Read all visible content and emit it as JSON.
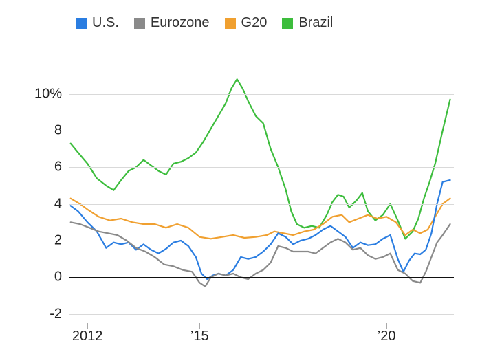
{
  "chart": {
    "type": "line",
    "background_color": "#ffffff",
    "font_family": "sans-serif",
    "legend": {
      "position": "top",
      "fontsize": 20,
      "swatch_size": 16,
      "items": [
        {
          "label": "U.S.",
          "color": "#2a7de1"
        },
        {
          "label": "Eurozone",
          "color": "#8a8a8a"
        },
        {
          "label": "G20",
          "color": "#f0a030"
        },
        {
          "label": "Brazil",
          "color": "#3dbd3d"
        }
      ]
    },
    "x_axis": {
      "lim": [
        2011.5,
        2021.8
      ],
      "ticks": [
        {
          "value": 2012,
          "label": "2012"
        },
        {
          "value": 2015,
          "label": "’15"
        },
        {
          "value": 2020,
          "label": "’20"
        }
      ],
      "tick_fontsize": 20,
      "tick_color": "#222222",
      "tick_mark_color": "#a9a9a9"
    },
    "y_axis": {
      "lim": [
        -2.5,
        11
      ],
      "ticks": [
        {
          "value": -2,
          "label": "-2"
        },
        {
          "value": 0,
          "label": "0"
        },
        {
          "value": 2,
          "label": "2"
        },
        {
          "value": 4,
          "label": "4"
        },
        {
          "value": 6,
          "label": "6"
        },
        {
          "value": 8,
          "label": "8"
        },
        {
          "value": 10,
          "label": "10%"
        }
      ],
      "tick_fontsize": 20,
      "tick_color": "#222222",
      "zero_line_color": "#111111",
      "grid_color": "#d9d9d9",
      "zero_line_width": 1.5,
      "grid_line_width": 1
    },
    "line_width": 2.2,
    "series": [
      {
        "name": "Brazil",
        "color": "#3dbd3d",
        "points": [
          [
            2011.55,
            7.3
          ],
          [
            2011.75,
            6.8
          ],
          [
            2012.0,
            6.2
          ],
          [
            2012.25,
            5.4
          ],
          [
            2012.5,
            5.0
          ],
          [
            2012.7,
            4.75
          ],
          [
            2012.9,
            5.3
          ],
          [
            2013.1,
            5.8
          ],
          [
            2013.3,
            6.0
          ],
          [
            2013.5,
            6.4
          ],
          [
            2013.7,
            6.1
          ],
          [
            2013.9,
            5.8
          ],
          [
            2014.1,
            5.6
          ],
          [
            2014.3,
            6.2
          ],
          [
            2014.5,
            6.3
          ],
          [
            2014.7,
            6.5
          ],
          [
            2014.9,
            6.8
          ],
          [
            2015.1,
            7.4
          ],
          [
            2015.3,
            8.1
          ],
          [
            2015.5,
            8.8
          ],
          [
            2015.7,
            9.5
          ],
          [
            2015.85,
            10.3
          ],
          [
            2016.0,
            10.8
          ],
          [
            2016.15,
            10.3
          ],
          [
            2016.3,
            9.6
          ],
          [
            2016.5,
            8.8
          ],
          [
            2016.7,
            8.4
          ],
          [
            2016.9,
            7.0
          ],
          [
            2017.1,
            6.0
          ],
          [
            2017.3,
            4.8
          ],
          [
            2017.45,
            3.6
          ],
          [
            2017.6,
            2.9
          ],
          [
            2017.8,
            2.7
          ],
          [
            2018.0,
            2.8
          ],
          [
            2018.2,
            2.7
          ],
          [
            2018.4,
            3.4
          ],
          [
            2018.55,
            4.1
          ],
          [
            2018.7,
            4.5
          ],
          [
            2018.85,
            4.4
          ],
          [
            2019.0,
            3.8
          ],
          [
            2019.2,
            4.2
          ],
          [
            2019.35,
            4.6
          ],
          [
            2019.5,
            3.6
          ],
          [
            2019.7,
            3.1
          ],
          [
            2019.9,
            3.4
          ],
          [
            2020.1,
            4.0
          ],
          [
            2020.3,
            3.1
          ],
          [
            2020.5,
            2.1
          ],
          [
            2020.7,
            2.5
          ],
          [
            2020.85,
            3.2
          ],
          [
            2021.0,
            4.3
          ],
          [
            2021.15,
            5.2
          ],
          [
            2021.3,
            6.2
          ],
          [
            2021.5,
            8.0
          ],
          [
            2021.7,
            9.7
          ]
        ]
      },
      {
        "name": "G20",
        "color": "#f0a030",
        "points": [
          [
            2011.55,
            4.3
          ],
          [
            2011.8,
            4.0
          ],
          [
            2012.0,
            3.7
          ],
          [
            2012.3,
            3.3
          ],
          [
            2012.6,
            3.1
          ],
          [
            2012.9,
            3.2
          ],
          [
            2013.2,
            3.0
          ],
          [
            2013.5,
            2.9
          ],
          [
            2013.8,
            2.9
          ],
          [
            2014.1,
            2.7
          ],
          [
            2014.4,
            2.9
          ],
          [
            2014.7,
            2.7
          ],
          [
            2015.0,
            2.2
          ],
          [
            2015.3,
            2.1
          ],
          [
            2015.6,
            2.2
          ],
          [
            2015.9,
            2.3
          ],
          [
            2016.2,
            2.15
          ],
          [
            2016.5,
            2.2
          ],
          [
            2016.8,
            2.3
          ],
          [
            2017.0,
            2.5
          ],
          [
            2017.25,
            2.4
          ],
          [
            2017.5,
            2.3
          ],
          [
            2017.8,
            2.5
          ],
          [
            2018.05,
            2.6
          ],
          [
            2018.3,
            2.9
          ],
          [
            2018.55,
            3.3
          ],
          [
            2018.8,
            3.4
          ],
          [
            2019.0,
            3.0
          ],
          [
            2019.25,
            3.2
          ],
          [
            2019.5,
            3.4
          ],
          [
            2019.75,
            3.2
          ],
          [
            2020.0,
            3.3
          ],
          [
            2020.25,
            3.0
          ],
          [
            2020.5,
            2.3
          ],
          [
            2020.7,
            2.6
          ],
          [
            2020.9,
            2.4
          ],
          [
            2021.1,
            2.6
          ],
          [
            2021.3,
            3.3
          ],
          [
            2021.5,
            4.0
          ],
          [
            2021.7,
            4.3
          ]
        ]
      },
      {
        "name": "U.S.",
        "color": "#2a7de1",
        "points": [
          [
            2011.55,
            3.9
          ],
          [
            2011.75,
            3.6
          ],
          [
            2012.0,
            3.0
          ],
          [
            2012.25,
            2.5
          ],
          [
            2012.5,
            1.6
          ],
          [
            2012.7,
            1.9
          ],
          [
            2012.9,
            1.8
          ],
          [
            2013.1,
            1.9
          ],
          [
            2013.3,
            1.5
          ],
          [
            2013.5,
            1.8
          ],
          [
            2013.7,
            1.5
          ],
          [
            2013.9,
            1.3
          ],
          [
            2014.1,
            1.55
          ],
          [
            2014.3,
            1.9
          ],
          [
            2014.5,
            2.0
          ],
          [
            2014.7,
            1.7
          ],
          [
            2014.9,
            1.1
          ],
          [
            2015.05,
            0.2
          ],
          [
            2015.2,
            -0.1
          ],
          [
            2015.35,
            0.1
          ],
          [
            2015.5,
            0.2
          ],
          [
            2015.7,
            0.1
          ],
          [
            2015.9,
            0.4
          ],
          [
            2016.1,
            1.1
          ],
          [
            2016.3,
            1.0
          ],
          [
            2016.5,
            1.1
          ],
          [
            2016.7,
            1.4
          ],
          [
            2016.9,
            1.8
          ],
          [
            2017.1,
            2.4
          ],
          [
            2017.3,
            2.2
          ],
          [
            2017.5,
            1.8
          ],
          [
            2017.7,
            2.0
          ],
          [
            2017.9,
            2.1
          ],
          [
            2018.1,
            2.3
          ],
          [
            2018.3,
            2.6
          ],
          [
            2018.5,
            2.8
          ],
          [
            2018.7,
            2.5
          ],
          [
            2018.9,
            2.2
          ],
          [
            2019.1,
            1.6
          ],
          [
            2019.3,
            1.9
          ],
          [
            2019.5,
            1.75
          ],
          [
            2019.7,
            1.8
          ],
          [
            2019.9,
            2.1
          ],
          [
            2020.1,
            2.3
          ],
          [
            2020.3,
            1.0
          ],
          [
            2020.45,
            0.3
          ],
          [
            2020.6,
            0.9
          ],
          [
            2020.75,
            1.3
          ],
          [
            2020.9,
            1.25
          ],
          [
            2021.05,
            1.5
          ],
          [
            2021.2,
            2.4
          ],
          [
            2021.35,
            4.0
          ],
          [
            2021.5,
            5.2
          ],
          [
            2021.7,
            5.3
          ]
        ]
      },
      {
        "name": "Eurozone",
        "color": "#8a8a8a",
        "points": [
          [
            2011.55,
            3.0
          ],
          [
            2011.8,
            2.9
          ],
          [
            2012.05,
            2.7
          ],
          [
            2012.3,
            2.5
          ],
          [
            2012.55,
            2.4
          ],
          [
            2012.8,
            2.3
          ],
          [
            2013.05,
            2.0
          ],
          [
            2013.3,
            1.6
          ],
          [
            2013.55,
            1.4
          ],
          [
            2013.8,
            1.1
          ],
          [
            2014.05,
            0.7
          ],
          [
            2014.3,
            0.6
          ],
          [
            2014.55,
            0.4
          ],
          [
            2014.8,
            0.3
          ],
          [
            2015.0,
            -0.3
          ],
          [
            2015.15,
            -0.5
          ],
          [
            2015.3,
            0.0
          ],
          [
            2015.5,
            0.2
          ],
          [
            2015.7,
            0.1
          ],
          [
            2015.9,
            0.2
          ],
          [
            2016.1,
            0.0
          ],
          [
            2016.3,
            -0.1
          ],
          [
            2016.5,
            0.2
          ],
          [
            2016.7,
            0.4
          ],
          [
            2016.9,
            0.8
          ],
          [
            2017.1,
            1.7
          ],
          [
            2017.3,
            1.6
          ],
          [
            2017.5,
            1.4
          ],
          [
            2017.7,
            1.4
          ],
          [
            2017.9,
            1.4
          ],
          [
            2018.1,
            1.3
          ],
          [
            2018.3,
            1.6
          ],
          [
            2018.5,
            1.9
          ],
          [
            2018.7,
            2.1
          ],
          [
            2018.9,
            1.9
          ],
          [
            2019.1,
            1.5
          ],
          [
            2019.3,
            1.6
          ],
          [
            2019.5,
            1.2
          ],
          [
            2019.7,
            1.0
          ],
          [
            2019.9,
            1.1
          ],
          [
            2020.1,
            1.3
          ],
          [
            2020.3,
            0.4
          ],
          [
            2020.5,
            0.2
          ],
          [
            2020.7,
            -0.2
          ],
          [
            2020.9,
            -0.3
          ],
          [
            2021.05,
            0.3
          ],
          [
            2021.2,
            1.1
          ],
          [
            2021.35,
            1.9
          ],
          [
            2021.5,
            2.3
          ],
          [
            2021.7,
            2.9
          ]
        ]
      }
    ]
  }
}
